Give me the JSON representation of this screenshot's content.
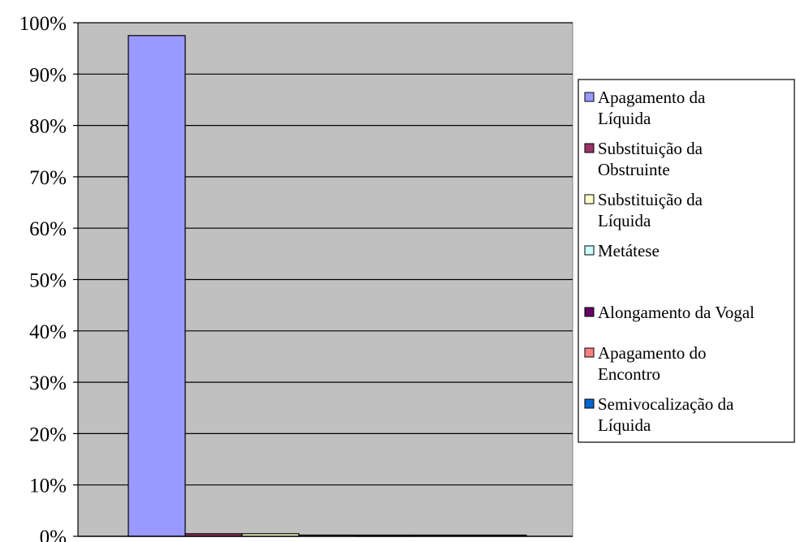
{
  "chart_data": {
    "type": "bar",
    "title": "",
    "xlabel": "",
    "ylabel": "",
    "ylim": [
      0,
      100
    ],
    "ytick_step": 10,
    "y_unit": "%",
    "grid": true,
    "plot_background": "#c0c0c0",
    "legend_position": "right",
    "series": [
      {
        "name": "Apagamento da Líquida",
        "name_lines": [
          "Apagamento da",
          "Líquida"
        ],
        "value": 97.5,
        "color": "#9999ff"
      },
      {
        "name": "Substituição da Obstruinte",
        "name_lines": [
          "Substituição da",
          "Obstruinte"
        ],
        "value": 0.5,
        "color": "#993366"
      },
      {
        "name": "Substituição da Líquida",
        "name_lines": [
          "Substituição da",
          "Líquida"
        ],
        "value": 0.5,
        "color": "#ffffcc"
      },
      {
        "name": "Metátese",
        "name_lines": [
          "Metátese"
        ],
        "value": 0.1,
        "color": "#ccffff"
      },
      {
        "name": "Alongamento da Vogal",
        "name_lines": [
          "Alongamento da Vogal"
        ],
        "value": 0.1,
        "color": "#660066"
      },
      {
        "name": "Apagamento do Encontro",
        "name_lines": [
          "Apagamento do",
          "Encontro"
        ],
        "value": 0.1,
        "color": "#ff8080"
      },
      {
        "name": "Semivocalização da Líquida",
        "name_lines": [
          "Semivocalização da",
          "Líquida"
        ],
        "value": 0.1,
        "color": "#0066cc"
      }
    ]
  }
}
